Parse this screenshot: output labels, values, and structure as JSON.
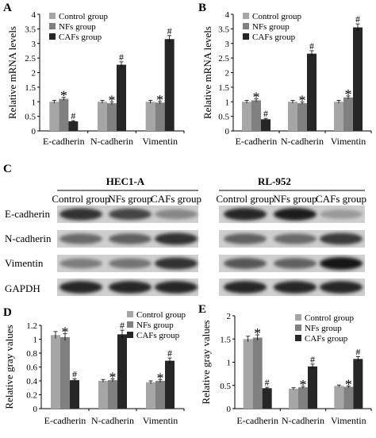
{
  "figure": {
    "panel_letters": [
      "A",
      "B",
      "C",
      "D",
      "E"
    ],
    "legend_labels": [
      "Control group",
      "NFs group",
      "CAFs group"
    ],
    "colors": {
      "control": "#a6a6a6",
      "nfs": "#808080",
      "cafs": "#262626"
    }
  },
  "chart_data": [
    {
      "panel": "A",
      "type": "bar",
      "categories": [
        "E-cadherin",
        "N-cadherin",
        "Vimentin"
      ],
      "series": [
        {
          "name": "Control group",
          "values": [
            1.0,
            1.0,
            1.0
          ],
          "errors": [
            0.05,
            0.05,
            0.05
          ]
        },
        {
          "name": "NFs group",
          "values": [
            1.1,
            0.95,
            0.97
          ],
          "errors": [
            0.05,
            0.05,
            0.04
          ]
        },
        {
          "name": "CAFs group",
          "values": [
            0.33,
            2.27,
            3.15
          ],
          "errors": [
            0.02,
            0.1,
            0.12
          ]
        }
      ],
      "markers": [
        [
          "",
          "*",
          "#"
        ],
        [
          "",
          "*",
          "#"
        ],
        [
          "",
          "*",
          "#"
        ]
      ],
      "ylabel": "Relative mRNA levels",
      "ylim": [
        0,
        4
      ],
      "yticks": [
        0,
        0.5,
        1,
        1.5,
        2,
        2.5,
        3,
        3.5,
        4
      ],
      "legend": "top-left"
    },
    {
      "panel": "B",
      "type": "bar",
      "categories": [
        "E-cadherin",
        "N-cadherin",
        "Vimentin"
      ],
      "series": [
        {
          "name": "Control group",
          "values": [
            1.0,
            1.0,
            1.0
          ],
          "errors": [
            0.05,
            0.05,
            0.05
          ]
        },
        {
          "name": "NFs group",
          "values": [
            1.05,
            0.95,
            1.15
          ],
          "errors": [
            0.05,
            0.04,
            0.05
          ]
        },
        {
          "name": "CAFs group",
          "values": [
            0.4,
            2.65,
            3.55
          ],
          "errors": [
            0.03,
            0.1,
            0.12
          ]
        }
      ],
      "markers": [
        [
          "",
          "*",
          "#"
        ],
        [
          "",
          "*",
          "#"
        ],
        [
          "",
          "*",
          "#"
        ]
      ],
      "ylabel": "Relative mRNA levels",
      "ylim": [
        0,
        4
      ],
      "yticks": [
        0,
        0.5,
        1,
        1.5,
        2,
        2.5,
        3,
        3.5,
        4
      ],
      "legend": "top-left"
    },
    {
      "panel": "D",
      "type": "bar",
      "categories": [
        "E-cadherin",
        "N-cadherin",
        "Vimentin"
      ],
      "series": [
        {
          "name": "Control group",
          "values": [
            1.06,
            0.4,
            0.38
          ],
          "errors": [
            0.05,
            0.02,
            0.02
          ]
        },
        {
          "name": "NFs group",
          "values": [
            1.03,
            0.41,
            0.4
          ],
          "errors": [
            0.05,
            0.02,
            0.02
          ]
        },
        {
          "name": "CAFs group",
          "values": [
            0.41,
            1.07,
            0.69
          ],
          "errors": [
            0.02,
            0.06,
            0.04
          ]
        }
      ],
      "markers": [
        [
          "",
          "*",
          "#"
        ],
        [
          "",
          "*",
          "#"
        ],
        [
          "",
          "*",
          "#"
        ]
      ],
      "ylabel": "Relative gray values",
      "ylim": [
        0,
        1.2
      ],
      "yticks": [
        0,
        0.2,
        0.4,
        0.6,
        0.8,
        1,
        1.2
      ],
      "legend": "top-right"
    },
    {
      "panel": "E",
      "type": "bar",
      "categories": [
        "E-cadherin",
        "N-cadherin",
        "Vimentin"
      ],
      "series": [
        {
          "name": "Control group",
          "values": [
            1.5,
            0.43,
            0.49
          ],
          "errors": [
            0.06,
            0.02,
            0.02
          ]
        },
        {
          "name": "NFs group",
          "values": [
            1.53,
            0.46,
            0.47
          ],
          "errors": [
            0.06,
            0.02,
            0.02
          ]
        },
        {
          "name": "CAFs group",
          "values": [
            0.44,
            0.91,
            1.07
          ],
          "errors": [
            0.02,
            0.05,
            0.05
          ]
        }
      ],
      "markers": [
        [
          "",
          "*",
          "#"
        ],
        [
          "",
          "*",
          "#"
        ],
        [
          "",
          "*",
          "#"
        ]
      ],
      "ylabel": "Relative gray values",
      "ylim": [
        0,
        2
      ],
      "yticks": [
        0,
        0.5,
        1,
        1.5,
        2
      ],
      "legend": "top-right"
    }
  ],
  "blot": {
    "cell_lines": [
      "HEC1-A",
      "RL-952"
    ],
    "lane_labels": [
      "Control group",
      "NFs group",
      "CAFs group"
    ],
    "proteins": [
      "E-cadherin",
      "N-cadherin",
      "Vimentin",
      "GAPDH"
    ],
    "intensities": {
      "HEC1-A": [
        [
          0.85,
          0.75,
          0.4
        ],
        [
          0.55,
          0.6,
          0.85
        ],
        [
          0.45,
          0.5,
          0.85
        ],
        [
          0.9,
          0.9,
          0.9
        ]
      ],
      "RL-952": [
        [
          0.9,
          0.95,
          0.3
        ],
        [
          0.6,
          0.55,
          0.8
        ],
        [
          0.65,
          0.6,
          1.0
        ],
        [
          0.9,
          0.9,
          0.9
        ]
      ]
    }
  }
}
